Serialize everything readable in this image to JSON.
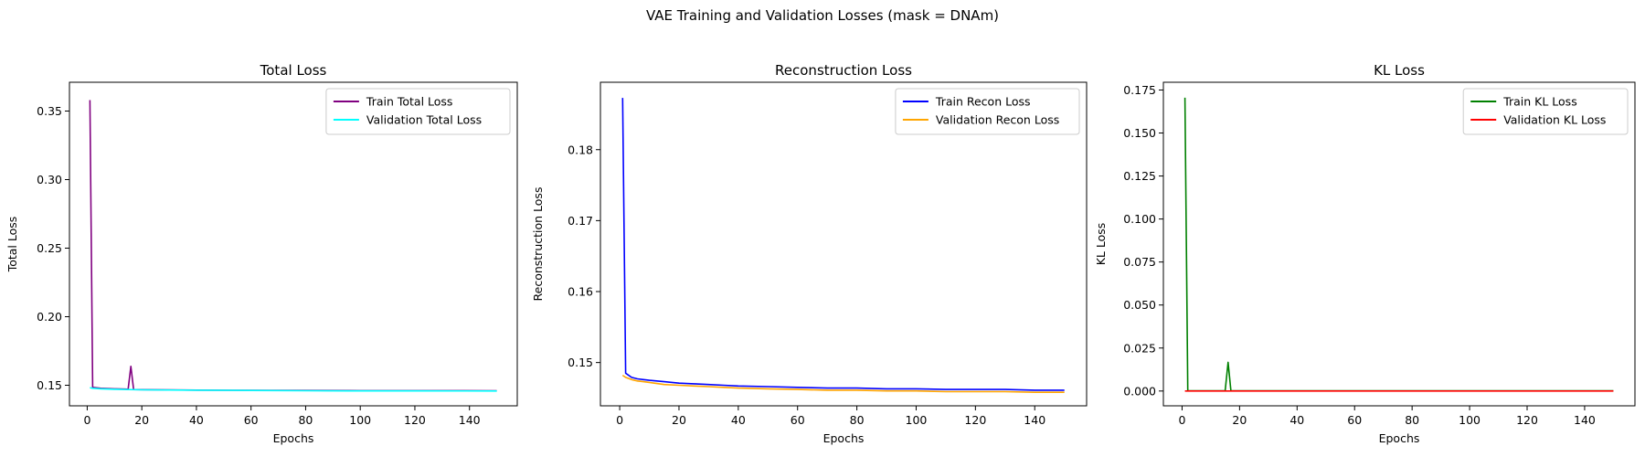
{
  "suptitle": "VAE Training and Validation Losses (mask = DNAm)",
  "chart_data": [
    {
      "type": "line",
      "title": "Total Loss",
      "xlabel": "Epochs",
      "ylabel": "Total Loss",
      "xlim": [
        -6.5,
        157.5
      ],
      "ylim": [
        0.135,
        0.371
      ],
      "xticks": [
        0,
        20,
        40,
        60,
        80,
        100,
        120,
        140
      ],
      "yticks": [
        0.15,
        0.2,
        0.25,
        0.3,
        0.35
      ],
      "ytick_labels": [
        "0.15",
        "0.20",
        "0.25",
        "0.30",
        "0.35"
      ],
      "legend_position": "top-right",
      "grid": false,
      "series": [
        {
          "name": "Train Total Loss",
          "color": "#800080",
          "points": [
            [
              1,
              0.358
            ],
            [
              2,
              0.1485
            ],
            [
              5,
              0.1478
            ],
            [
              10,
              0.1474
            ],
            [
              14,
              0.1472
            ],
            [
              15,
              0.1471
            ],
            [
              16,
              0.1638
            ],
            [
              17,
              0.1469
            ],
            [
              20,
              0.1468
            ],
            [
              40,
              0.1465
            ],
            [
              60,
              0.1463
            ],
            [
              80,
              0.1462
            ],
            [
              100,
              0.1461
            ],
            [
              120,
              0.1461
            ],
            [
              150,
              0.146
            ]
          ]
        },
        {
          "name": "Validation Total Loss",
          "color": "#00ffff",
          "points": [
            [
              1,
              0.1482
            ],
            [
              2,
              0.1478
            ],
            [
              5,
              0.1474
            ],
            [
              10,
              0.1471
            ],
            [
              20,
              0.1467
            ],
            [
              40,
              0.1464
            ],
            [
              60,
              0.1462
            ],
            [
              80,
              0.146
            ],
            [
              100,
              0.1459
            ],
            [
              120,
              0.1459
            ],
            [
              150,
              0.1458
            ]
          ]
        }
      ]
    },
    {
      "type": "line",
      "title": "Reconstruction Loss",
      "xlabel": "Epochs",
      "ylabel": "Reconstruction Loss",
      "xlim": [
        -6.5,
        157.5
      ],
      "ylim": [
        0.1439,
        0.1895
      ],
      "xticks": [
        0,
        20,
        40,
        60,
        80,
        100,
        120,
        140
      ],
      "yticks": [
        0.15,
        0.16,
        0.17,
        0.18
      ],
      "ytick_labels": [
        "0.15",
        "0.16",
        "0.17",
        "0.18"
      ],
      "legend_position": "top-right",
      "grid": false,
      "series": [
        {
          "name": "Train Recon Loss",
          "color": "#0000ff",
          "points": [
            [
              1,
              0.1873
            ],
            [
              2,
              0.1485
            ],
            [
              4,
              0.1479
            ],
            [
              6,
              0.1477
            ],
            [
              8,
              0.1476
            ],
            [
              10,
              0.1475
            ],
            [
              15,
              0.1473
            ],
            [
              20,
              0.1471
            ],
            [
              25,
              0.147
            ],
            [
              30,
              0.1469
            ],
            [
              35,
              0.1468
            ],
            [
              40,
              0.1467
            ],
            [
              50,
              0.1466
            ],
            [
              60,
              0.1465
            ],
            [
              70,
              0.1464
            ],
            [
              80,
              0.1464
            ],
            [
              90,
              0.1463
            ],
            [
              100,
              0.1463
            ],
            [
              110,
              0.1462
            ],
            [
              120,
              0.1462
            ],
            [
              130,
              0.1462
            ],
            [
              140,
              0.1461
            ],
            [
              150,
              0.1461
            ]
          ]
        },
        {
          "name": "Validation Recon Loss",
          "color": "#ffa500",
          "points": [
            [
              1,
              0.1482
            ],
            [
              2,
              0.1479
            ],
            [
              4,
              0.1476
            ],
            [
              6,
              0.1474
            ],
            [
              8,
              0.1473
            ],
            [
              10,
              0.1472
            ],
            [
              15,
              0.1469
            ],
            [
              20,
              0.1468
            ],
            [
              25,
              0.1467
            ],
            [
              30,
              0.1466
            ],
            [
              35,
              0.1465
            ],
            [
              40,
              0.1464
            ],
            [
              50,
              0.1463
            ],
            [
              60,
              0.1462
            ],
            [
              70,
              0.1461
            ],
            [
              80,
              0.1461
            ],
            [
              90,
              0.146
            ],
            [
              100,
              0.146
            ],
            [
              110,
              0.1459
            ],
            [
              120,
              0.1459
            ],
            [
              130,
              0.1459
            ],
            [
              140,
              0.1458
            ],
            [
              150,
              0.1458
            ]
          ]
        }
      ]
    },
    {
      "type": "line",
      "title": "KL Loss",
      "xlabel": "Epochs",
      "ylabel": "KL Loss",
      "xlim": [
        -6.5,
        157.5
      ],
      "ylim": [
        -0.0086,
        0.1795
      ],
      "xticks": [
        0,
        20,
        40,
        60,
        80,
        100,
        120,
        140
      ],
      "yticks": [
        0.0,
        0.025,
        0.05,
        0.075,
        0.1,
        0.125,
        0.15,
        0.175
      ],
      "ytick_labels": [
        "0.000",
        "0.025",
        "0.050",
        "0.075",
        "0.100",
        "0.125",
        "0.150",
        "0.175"
      ],
      "legend_position": "top-right",
      "grid": false,
      "series": [
        {
          "name": "Train KL Loss",
          "color": "#008000",
          "points": [
            [
              1,
              0.1705
            ],
            [
              2,
              0.0001
            ],
            [
              15,
              0.0001
            ],
            [
              16,
              0.0167
            ],
            [
              17,
              0.0001
            ],
            [
              150,
              0.0001
            ]
          ]
        },
        {
          "name": "Validation KL Loss",
          "color": "#ff0000",
          "points": [
            [
              1,
              0.0
            ],
            [
              150,
              0.0
            ]
          ]
        }
      ]
    }
  ]
}
